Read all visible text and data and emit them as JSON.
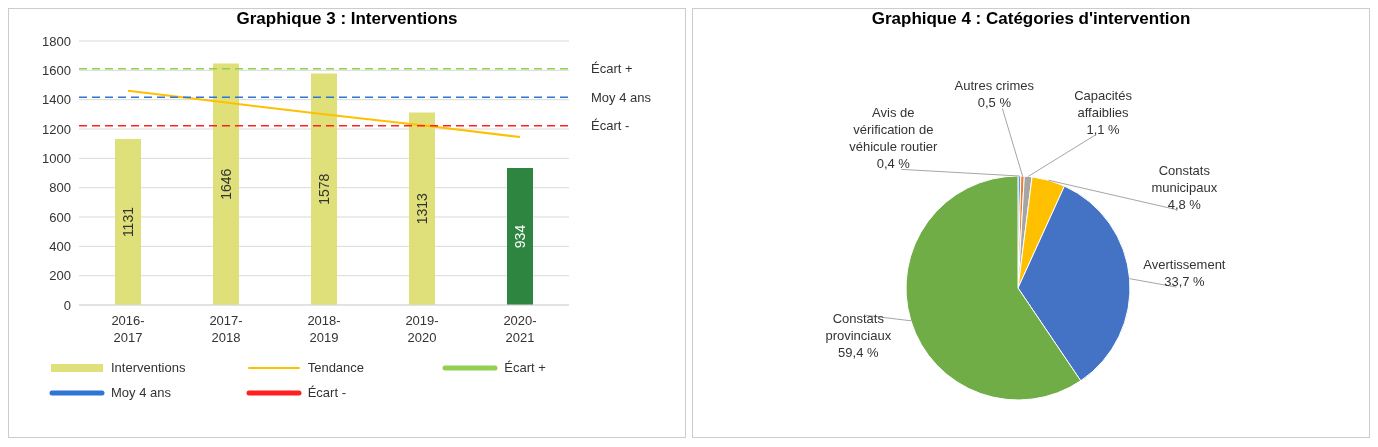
{
  "chart_data": [
    {
      "type": "bar",
      "title": "Graphique 3 : Interventions",
      "categories": [
        "2016-2017",
        "2017-2018",
        "2018-2019",
        "2019-2020",
        "2020-2021"
      ],
      "series": [
        {
          "name": "Interventions",
          "type": "bar",
          "color": "#dfe07a",
          "colors": [
            "#dfe07a",
            "#dfe07a",
            "#dfe07a",
            "#dfe07a",
            "#2e8540"
          ],
          "values": [
            1131,
            1646,
            1578,
            1313,
            934
          ],
          "value_labels": [
            "1131",
            "1646",
            "1578",
            "1313",
            "934"
          ]
        },
        {
          "name": "Tendance",
          "type": "line",
          "color": "#ffc000",
          "values": [
            1460,
            1380,
            1300,
            1225,
            1145
          ]
        }
      ],
      "ref_lines": [
        {
          "axis": "y",
          "value": 1610,
          "label": "Écart +",
          "color": "#92d050",
          "line_style": "dashed"
        },
        {
          "axis": "y",
          "value": 1417,
          "label": "Moy 4 ans",
          "color": "#2e75d6",
          "line_style": "dashed"
        },
        {
          "axis": "y",
          "value": 1222,
          "label": "Écart -",
          "color": "#ff2020",
          "line_style": "dashed"
        }
      ],
      "ylim": [
        0,
        1800
      ],
      "yticks": [
        0,
        200,
        400,
        600,
        800,
        1000,
        1200,
        1400,
        1600,
        1800
      ],
      "grid": "y",
      "legend": "bottom",
      "marker": "none"
    },
    {
      "type": "pie",
      "title": "Graphique 4 : Catégories d'intervention",
      "categories": [
        "Avis de vérification de véhicule routier",
        "Autres crimes",
        "Capacités affaiblies",
        "Constats municipaux",
        "Avertissement",
        "Constats provinciaux"
      ],
      "values": [
        0.4,
        0.5,
        1.1,
        4.8,
        33.7,
        59.4
      ],
      "colors": [
        "#5b9bd5",
        "#ed7d31",
        "#a5a5a5",
        "#ffc000",
        "#4472c4",
        "#70ad47"
      ],
      "value_labels": [
        "0,4 %",
        "0,5 %",
        "1,1 %",
        "4,8 %",
        "33,7 %",
        "59,4 %"
      ]
    }
  ]
}
